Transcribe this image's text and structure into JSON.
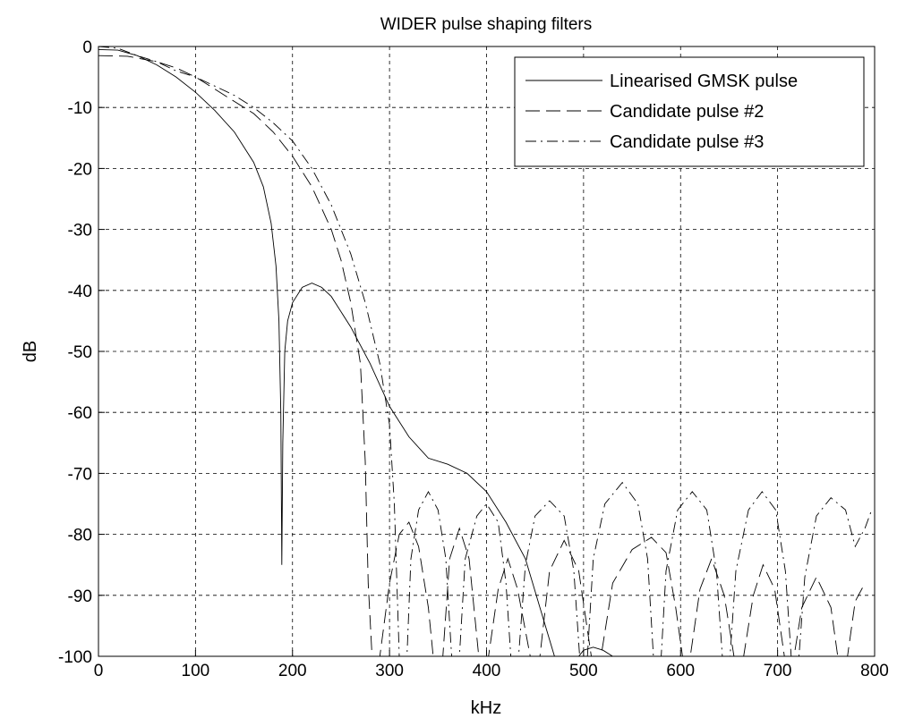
{
  "chart_data": {
    "type": "line",
    "title": "WIDER pulse shaping filters",
    "xlabel": "kHz",
    "ylabel": "dB",
    "xlim": [
      0,
      800
    ],
    "ylim": [
      -100,
      0
    ],
    "xticks": [
      0,
      100,
      200,
      300,
      400,
      500,
      600,
      700,
      800
    ],
    "yticks": [
      0,
      -10,
      -20,
      -30,
      -40,
      -50,
      -60,
      -70,
      -80,
      -90,
      -100
    ],
    "xtick_labels": [
      "0",
      "100",
      "200",
      "300",
      "400",
      "500",
      "600",
      "700",
      "800"
    ],
    "ytick_labels": [
      "0",
      "-10",
      "-20",
      "-30",
      "-40",
      "-50",
      "-60",
      "-70",
      "-80",
      "-90",
      "-100"
    ],
    "grid": true,
    "legend": {
      "position": "top-right"
    },
    "series": [
      {
        "name": "Linearised GMSK pulse",
        "line_style": "solid",
        "points": [
          [
            0,
            -0.5
          ],
          [
            20,
            -0.6
          ],
          [
            40,
            -1.5
          ],
          [
            60,
            -3
          ],
          [
            80,
            -5
          ],
          [
            100,
            -7.5
          ],
          [
            120,
            -10.5
          ],
          [
            140,
            -14
          ],
          [
            160,
            -19
          ],
          [
            170,
            -23
          ],
          [
            178,
            -29
          ],
          [
            183,
            -36
          ],
          [
            186,
            -45
          ],
          [
            188,
            -60
          ],
          [
            189,
            -85
          ],
          [
            190,
            -65
          ],
          [
            192,
            -50
          ],
          [
            195,
            -45
          ],
          [
            200,
            -42
          ],
          [
            210,
            -39.5
          ],
          [
            220,
            -38.8
          ],
          [
            230,
            -39.5
          ],
          [
            240,
            -41
          ],
          [
            260,
            -46
          ],
          [
            280,
            -52
          ],
          [
            300,
            -59
          ],
          [
            320,
            -64
          ],
          [
            340,
            -67.5
          ],
          [
            360,
            -68.5
          ],
          [
            380,
            -70
          ],
          [
            400,
            -73
          ],
          [
            420,
            -78
          ],
          [
            440,
            -84
          ],
          [
            455,
            -92
          ],
          [
            470,
            -100
          ],
          [
            495,
            -100
          ],
          [
            500,
            -99
          ],
          [
            510,
            -98.5
          ],
          [
            520,
            -99
          ],
          [
            530,
            -100
          ]
        ]
      },
      {
        "name": "Candidate pulse #2",
        "line_style": "dashed",
        "points": [
          [
            0,
            -1.5
          ],
          [
            30,
            -1.6
          ],
          [
            60,
            -2.5
          ],
          [
            80,
            -3.5
          ],
          [
            100,
            -5
          ],
          [
            120,
            -7
          ],
          [
            140,
            -9
          ],
          [
            160,
            -11
          ],
          [
            180,
            -14
          ],
          [
            200,
            -18
          ],
          [
            220,
            -23
          ],
          [
            240,
            -30
          ],
          [
            250,
            -35
          ],
          [
            260,
            -42
          ],
          [
            270,
            -52
          ],
          [
            275,
            -68
          ],
          [
            278,
            -88
          ],
          [
            282,
            -100
          ],
          [
            290,
            -100
          ],
          [
            300,
            -88
          ],
          [
            310,
            -80
          ],
          [
            320,
            -78
          ],
          [
            330,
            -82
          ],
          [
            340,
            -92
          ],
          [
            345,
            -100
          ],
          [
            355,
            -100
          ],
          [
            362,
            -84
          ],
          [
            372,
            -79
          ],
          [
            382,
            -84
          ],
          [
            392,
            -100
          ],
          [
            402,
            -100
          ],
          [
            412,
            -89
          ],
          [
            422,
            -84
          ],
          [
            432,
            -89
          ],
          [
            445,
            -100
          ],
          [
            455,
            -100
          ],
          [
            465,
            -86
          ],
          [
            480,
            -81
          ],
          [
            495,
            -86
          ],
          [
            508,
            -100
          ],
          [
            518,
            -100
          ],
          [
            530,
            -88
          ],
          [
            550,
            -82.5
          ],
          [
            570,
            -80.5
          ],
          [
            585,
            -83
          ],
          [
            595,
            -92
          ],
          [
            602,
            -100
          ],
          [
            610,
            -100
          ],
          [
            620,
            -89
          ],
          [
            632,
            -84
          ],
          [
            645,
            -90
          ],
          [
            655,
            -100
          ],
          [
            665,
            -100
          ],
          [
            675,
            -90
          ],
          [
            685,
            -85
          ],
          [
            697,
            -89
          ],
          [
            707,
            -100
          ],
          [
            717,
            -100
          ],
          [
            725,
            -92
          ],
          [
            740,
            -87
          ],
          [
            755,
            -92
          ],
          [
            762,
            -100
          ],
          [
            772,
            -100
          ],
          [
            780,
            -91
          ],
          [
            790,
            -88
          ]
        ]
      },
      {
        "name": "Candidate pulse #3",
        "line_style": "dash-dot",
        "points": [
          [
            0,
            0
          ],
          [
            20,
            -0.3
          ],
          [
            40,
            -1.5
          ],
          [
            60,
            -2.5
          ],
          [
            80,
            -4
          ],
          [
            100,
            -5
          ],
          [
            120,
            -6.5
          ],
          [
            140,
            -8
          ],
          [
            160,
            -10
          ],
          [
            180,
            -12.5
          ],
          [
            200,
            -15.5
          ],
          [
            220,
            -20
          ],
          [
            240,
            -26
          ],
          [
            260,
            -34
          ],
          [
            275,
            -42
          ],
          [
            290,
            -52
          ],
          [
            300,
            -62
          ],
          [
            305,
            -75
          ],
          [
            310,
            -100
          ],
          [
            318,
            -100
          ],
          [
            322,
            -84
          ],
          [
            330,
            -76
          ],
          [
            340,
            -73
          ],
          [
            350,
            -76
          ],
          [
            358,
            -84
          ],
          [
            364,
            -100
          ],
          [
            372,
            -100
          ],
          [
            378,
            -84
          ],
          [
            390,
            -77
          ],
          [
            400,
            -75
          ],
          [
            412,
            -78
          ],
          [
            420,
            -88
          ],
          [
            425,
            -100
          ],
          [
            433,
            -100
          ],
          [
            440,
            -85
          ],
          [
            450,
            -77
          ],
          [
            465,
            -74.5
          ],
          [
            480,
            -77
          ],
          [
            490,
            -86
          ],
          [
            496,
            -100
          ],
          [
            504,
            -100
          ],
          [
            510,
            -84
          ],
          [
            522,
            -75
          ],
          [
            540,
            -71.5
          ],
          [
            556,
            -75
          ],
          [
            566,
            -84
          ],
          [
            572,
            -100
          ],
          [
            580,
            -100
          ],
          [
            585,
            -86
          ],
          [
            597,
            -76
          ],
          [
            612,
            -73
          ],
          [
            627,
            -76
          ],
          [
            637,
            -86
          ],
          [
            643,
            -100
          ],
          [
            651,
            -100
          ],
          [
            657,
            -86
          ],
          [
            670,
            -76
          ],
          [
            684,
            -73
          ],
          [
            698,
            -76
          ],
          [
            708,
            -86
          ],
          [
            714,
            -100
          ],
          [
            722,
            -100
          ],
          [
            728,
            -87
          ],
          [
            740,
            -77
          ],
          [
            755,
            -74
          ],
          [
            770,
            -76
          ],
          [
            780,
            -82
          ],
          [
            790,
            -79
          ],
          [
            797,
            -76
          ]
        ]
      }
    ]
  }
}
